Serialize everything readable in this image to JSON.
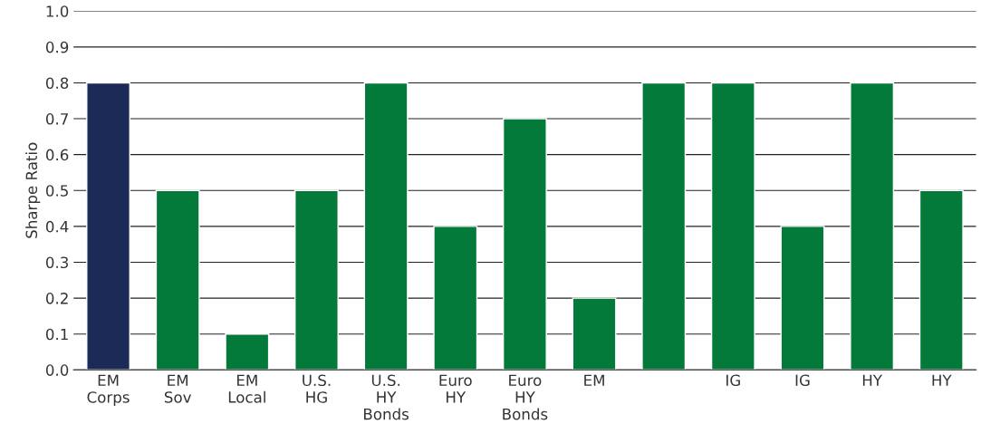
{
  "chart_data": {
    "type": "bar",
    "ylabel": "Sharpe Ratio",
    "categories": [
      "EM\nCorps",
      "EM\nSov",
      "EM\nLocal",
      "U.S.\nHG",
      "U.S.\nHY\nBonds",
      "Euro\nHY",
      "Euro\nHY\nBonds",
      "EM",
      null,
      "IG",
      "IG",
      "HY",
      "HY"
    ],
    "values": [
      0.8,
      0.5,
      0.1,
      0.5,
      0.8,
      0.4,
      0.7,
      0.2,
      0.8,
      0.8,
      0.4,
      0.8,
      0.5
    ],
    "colors": [
      "#1b2a56",
      "#037a3a",
      "#037a3a",
      "#037a3a",
      "#037a3a",
      "#037a3a",
      "#037a3a",
      "#037a3a",
      "#037a3a",
      "#037a3a",
      "#037a3a",
      "#037a3a",
      "#037a3a"
    ],
    "ylim": [
      0,
      1.0
    ],
    "yticks": [
      {
        "value": 0,
        "label": "0.0"
      },
      0.1,
      0.2,
      0.3,
      0.4,
      0.5,
      0.6,
      0.7,
      0.8,
      0.9,
      {
        "value": 1.0,
        "label": "1.0"
      }
    ],
    "grid": "y"
  }
}
